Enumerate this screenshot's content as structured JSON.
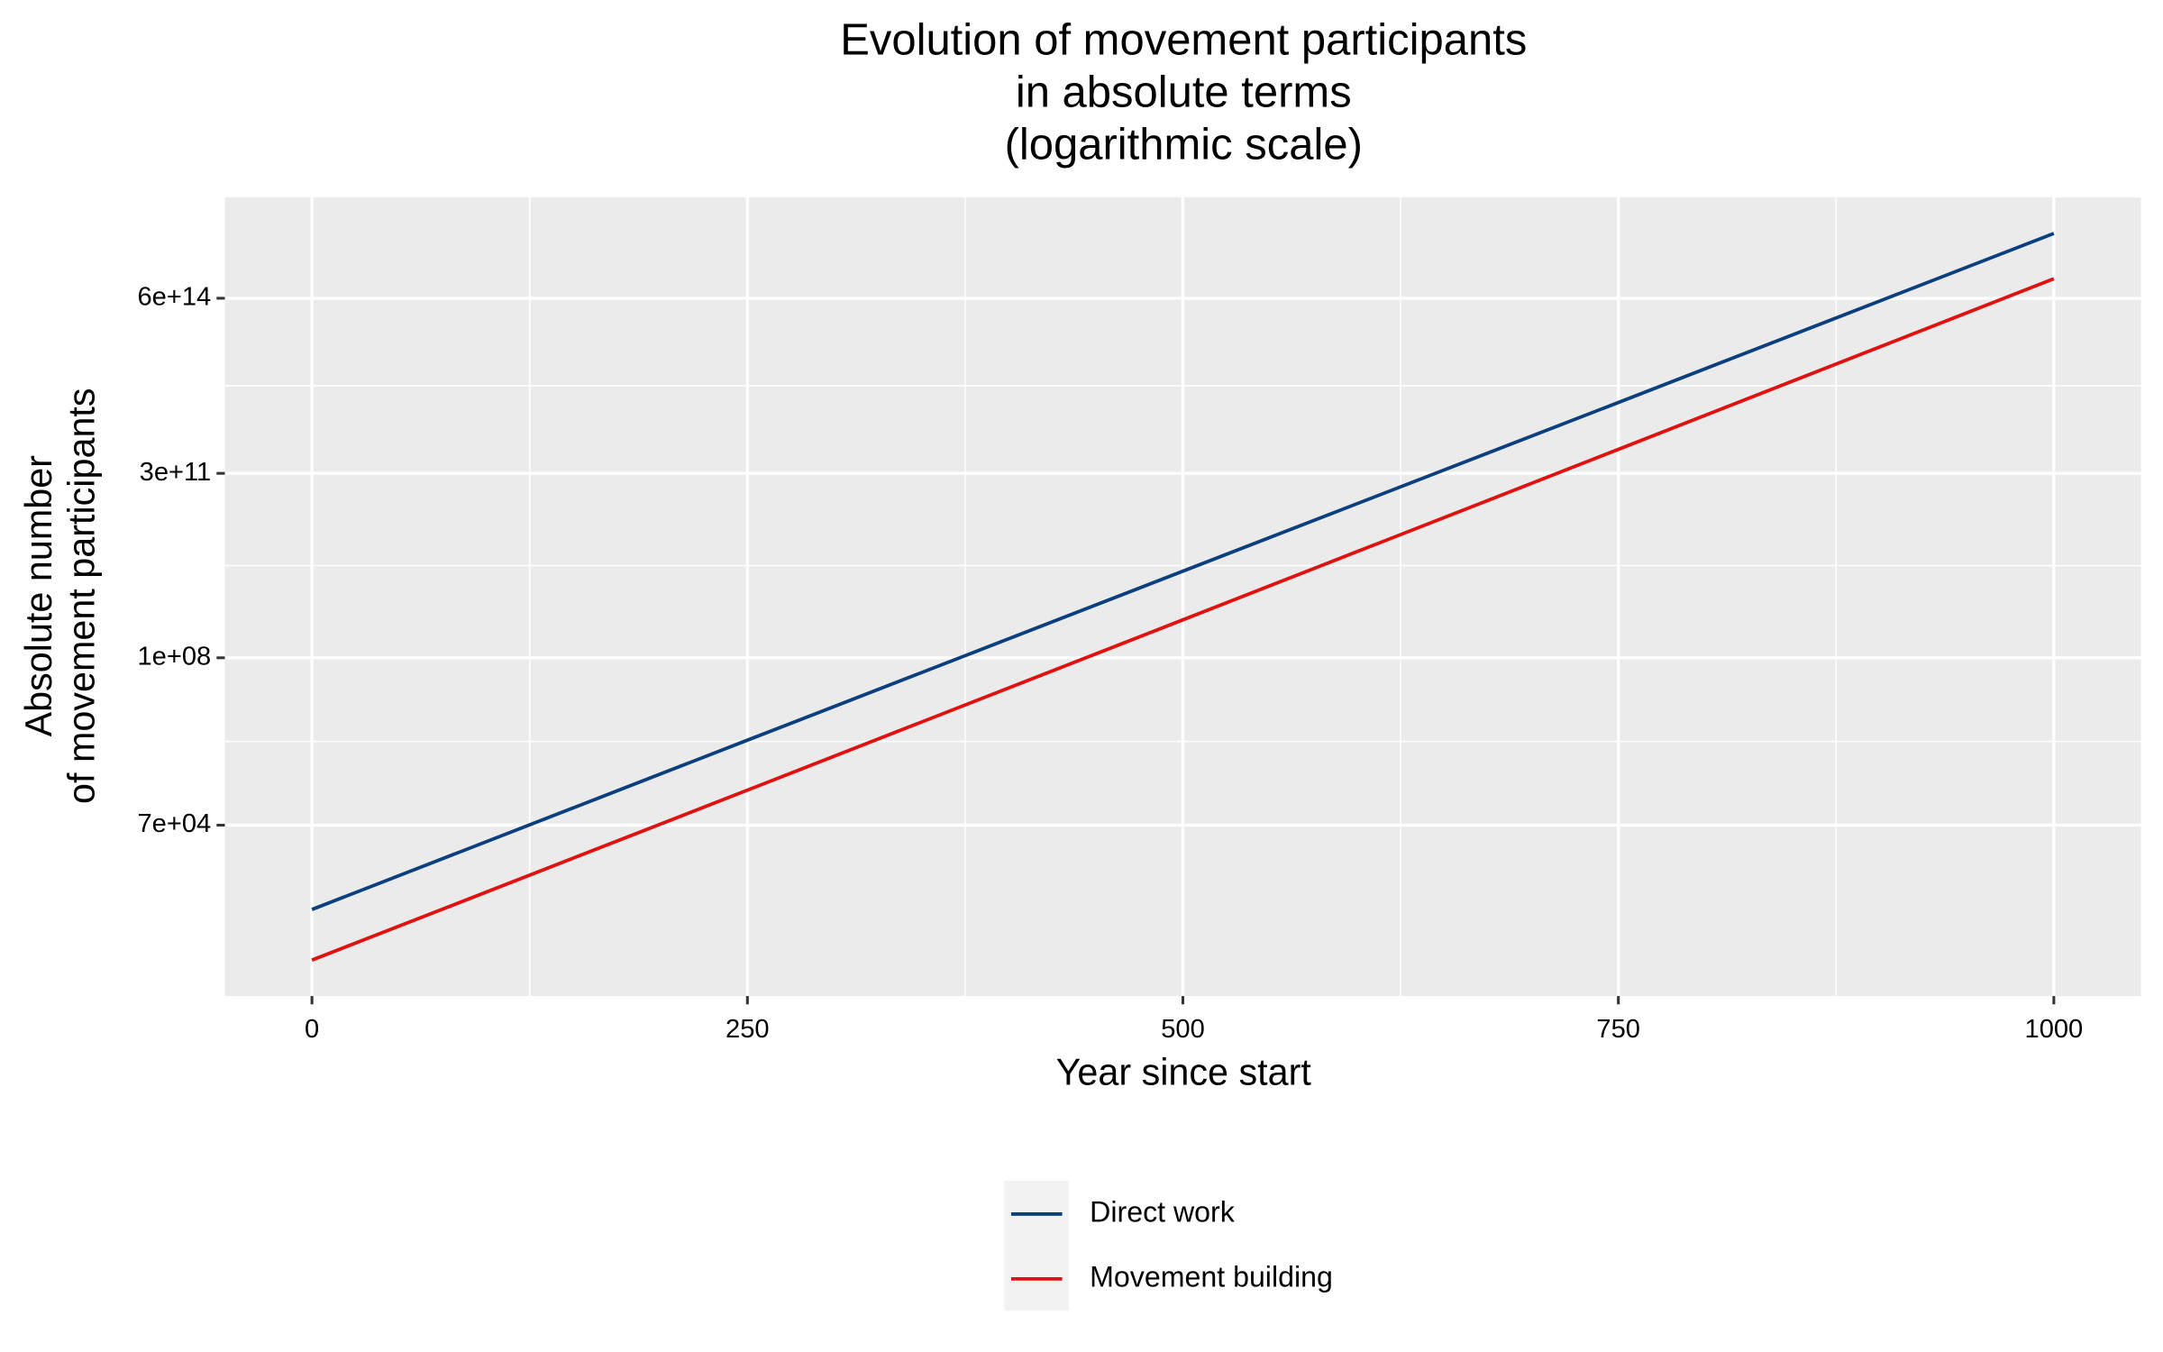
{
  "chart_data": {
    "type": "line",
    "title": [
      "Evolution of movement participants",
      "in absolute terms",
      "(logarithmic scale)"
    ],
    "x_label": "Year since start",
    "y_label": [
      "Absolute number",
      "of movement participants"
    ],
    "x": [
      0,
      250,
      500,
      750,
      1000
    ],
    "series": [
      {
        "name": "Direct work",
        "color": "#0b3f7e",
        "values": [
          1800,
          2800000,
          4300000000,
          6500000000000,
          10000000000000000
        ]
      },
      {
        "name": "Movement building",
        "color": "#e0120f",
        "values": [
          200,
          320000,
          520000000,
          850000000000,
          1400000000000000
        ]
      }
    ],
    "xlim": [
      -50,
      1050
    ],
    "xticks": [
      0,
      250,
      500,
      750,
      1000
    ],
    "ylim": [
      42,
      48000000000000000
    ],
    "log_y": true,
    "yticks": [
      {
        "value": 70000,
        "label": "7e+04"
      },
      {
        "value": 100000000,
        "label": "1e+08"
      },
      {
        "value": 300000000000,
        "label": "3e+11"
      },
      {
        "value": 600000000000000,
        "label": "6e+14"
      }
    ],
    "grid": true,
    "legend": "bottom"
  }
}
